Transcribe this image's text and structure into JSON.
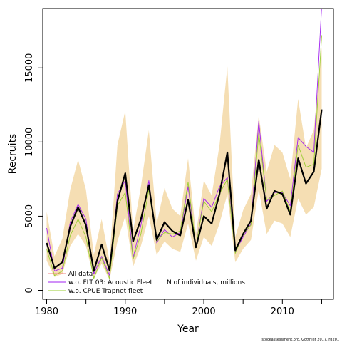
{
  "chart_data": {
    "type": "line",
    "xlabel": "Year",
    "ylabel": "Recruits",
    "xlim": [
      1979.5,
      2016.5
    ],
    "ylim": [
      -600,
      19000
    ],
    "x_ticks": [
      1980,
      1990,
      2000,
      2010
    ],
    "x_minor_ticks": [
      1985,
      1995,
      2005,
      2015
    ],
    "y_ticks": [
      0,
      5000,
      10000,
      15000
    ],
    "grid": false,
    "legend_position": "bottom-left",
    "annotation": "N of individuals, millions",
    "credit": "stockassessment.org, Gotthier 2017, r8201",
    "x": [
      1980,
      1981,
      1982,
      1983,
      1984,
      1985,
      1986,
      1987,
      1988,
      1989,
      1990,
      1991,
      1992,
      1993,
      1994,
      1995,
      1996,
      1997,
      1998,
      1999,
      2000,
      2001,
      2002,
      2003,
      2004,
      2005,
      2006,
      2007,
      2008,
      2009,
      2010,
      2011,
      2012,
      2013,
      2014,
      2015
    ],
    "band": {
      "color": "#f5deb3",
      "lower": [
        2000,
        900,
        1100,
        3000,
        3800,
        3000,
        800,
        1800,
        700,
        3300,
        5000,
        1600,
        3000,
        5000,
        2400,
        3300,
        2800,
        2600,
        4500,
        2000,
        3600,
        3000,
        4500,
        6500,
        1900,
        2800,
        3400,
        6800,
        3800,
        4700,
        4500,
        3600,
        6200,
        5100,
        5600,
        8200
      ],
      "upper": [
        5300,
        2300,
        3500,
        6800,
        8800,
        6800,
        2400,
        4800,
        2000,
        9800,
        12100,
        4000,
        7000,
        10800,
        4500,
        6900,
        5500,
        5000,
        8900,
        3800,
        7400,
        6400,
        9800,
        15100,
        3600,
        5400,
        6500,
        11800,
        8000,
        9800,
        9300,
        7500,
        12900,
        9600,
        10800,
        16400
      ]
    },
    "series": [
      {
        "name": "All data",
        "color": "#000000",
        "values": [
          3200,
          1500,
          1900,
          4300,
          5600,
          4400,
          1300,
          3100,
          1350,
          6000,
          7900,
          3300,
          4800,
          7100,
          3400,
          4600,
          4000,
          3700,
          6100,
          2900,
          5000,
          4500,
          6500,
          9300,
          2700,
          3800,
          4700,
          8800,
          5500,
          6700,
          6500,
          5100,
          8900,
          7200,
          8000,
          12200
        ]
      },
      {
        "name": "w.o. FLT 03: Acoustic Fleet",
        "color": "#a020f0",
        "values": [
          4200,
          1300,
          1500,
          4600,
          5800,
          4800,
          1100,
          2300,
          1000,
          6500,
          7400,
          2200,
          4400,
          7400,
          3200,
          4100,
          3600,
          3900,
          7000,
          3000,
          6200,
          5600,
          7000,
          7600,
          2600,
          3600,
          4500,
          11400,
          6000,
          6600,
          6600,
          5700,
          10300,
          9700,
          9300,
          19200
        ]
      },
      {
        "name": "w.o. CPUE Trapnet fleet",
        "color": "#9acd32",
        "values": [
          2800,
          1000,
          1300,
          3700,
          4800,
          3600,
          800,
          2200,
          800,
          5700,
          6600,
          2100,
          3800,
          6800,
          3300,
          3900,
          3800,
          4000,
          7300,
          3000,
          6000,
          5300,
          6500,
          7500,
          2500,
          3800,
          4400,
          10600,
          6100,
          6400,
          6700,
          5300,
          9800,
          8300,
          8500,
          17200
        ]
      }
    ]
  }
}
